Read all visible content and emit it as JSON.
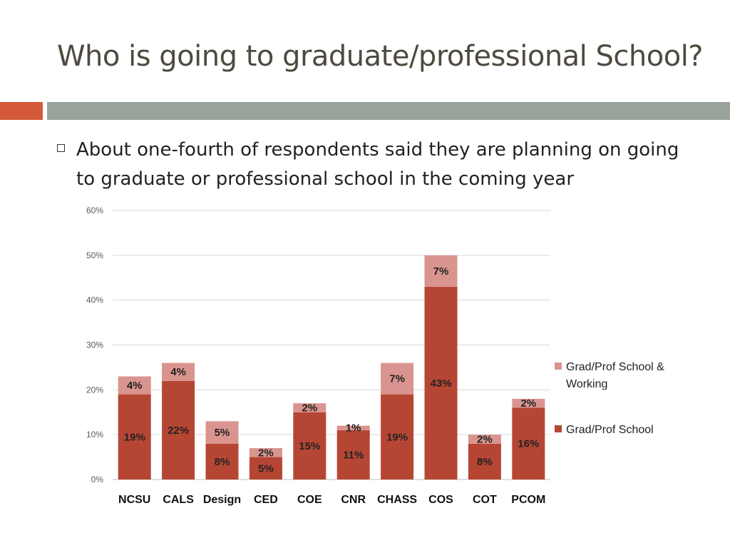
{
  "slide": {
    "title": "Who is going to graduate/professional School?",
    "bullet": "About one-fourth of respondents said they are planning on going to graduate or professional school in the coming year",
    "accent_color": "#d3593a",
    "band_color": "#97a39b"
  },
  "chart_data": {
    "type": "bar",
    "stacked": true,
    "categories": [
      "NCSU",
      "CALS",
      "Design",
      "CED",
      "COE",
      "CNR",
      "CHASS",
      "COS",
      "COT",
      "PCOM"
    ],
    "series": [
      {
        "name": "Grad/Prof School",
        "color": "#b64634",
        "values": [
          19,
          22,
          8,
          5,
          15,
          11,
          19,
          43,
          8,
          16
        ],
        "labels": [
          "19%",
          "22%",
          "8%",
          "5%",
          "15%",
          "11%",
          "19%",
          "43%",
          "8%",
          "16%"
        ]
      },
      {
        "name": "Grad/Prof School & Working",
        "color": "#da948f",
        "values": [
          4,
          4,
          5,
          2,
          2,
          1,
          7,
          7,
          2,
          2
        ],
        "labels": [
          "4%",
          "4%",
          "5%",
          "2%",
          "2%",
          "1%",
          "7%",
          "7%",
          "2%",
          "2%"
        ]
      }
    ],
    "ylim": [
      0,
      60
    ],
    "yticks": [
      0,
      10,
      20,
      30,
      40,
      50,
      60
    ],
    "ytick_labels": [
      "0%",
      "10%",
      "20%",
      "30%",
      "40%",
      "50%",
      "60%"
    ],
    "grid": true,
    "legend_position": "right",
    "legend": [
      "Grad/Prof School & Working",
      "Grad/Prof School"
    ]
  }
}
